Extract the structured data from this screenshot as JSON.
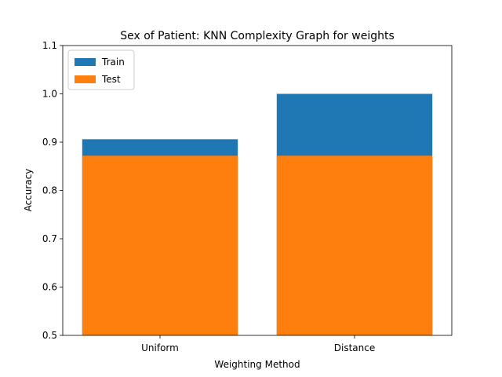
{
  "chart_data": {
    "type": "bar",
    "title": "Sex of Patient: KNN Complexity Graph for weights",
    "xlabel": "Weighting Method",
    "ylabel": "Accuracy",
    "categories": [
      "Uniform",
      "Distance"
    ],
    "ylim": [
      0.5,
      1.1
    ],
    "yticks": [
      "0.5",
      "0.6",
      "0.7",
      "0.8",
      "0.9",
      "1.0",
      "1.1"
    ],
    "grid": false,
    "legend_position": "top-left",
    "overlay": true,
    "series": [
      {
        "name": "Train",
        "values": [
          0.906,
          1.0
        ],
        "color": "#1f77b4"
      },
      {
        "name": "Test",
        "values": [
          0.872,
          0.872
        ],
        "color": "#ff7f0e"
      }
    ]
  }
}
